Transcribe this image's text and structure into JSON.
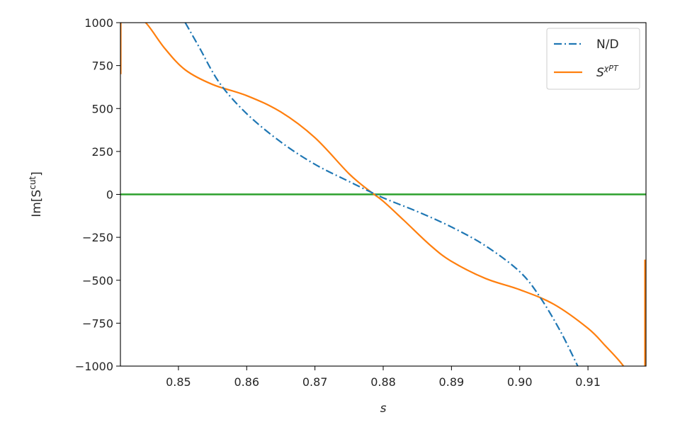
{
  "chart_data": {
    "type": "line",
    "xlabel": "s",
    "ylabel": "Im[S^cut]",
    "ylabel_base": "Im[S",
    "ylabel_sup": "cut",
    "ylabel_close": "]",
    "xlim": [
      0.8415,
      0.9185
    ],
    "ylim": [
      -1000,
      1000
    ],
    "xticks": [
      0.85,
      0.86,
      0.87,
      0.88,
      0.89,
      0.9,
      0.91
    ],
    "xtick_labels": [
      "0.85",
      "0.86",
      "0.87",
      "0.88",
      "0.89",
      "0.90",
      "0.91"
    ],
    "yticks": [
      1000,
      750,
      500,
      250,
      0,
      -250,
      -500,
      -750,
      -1000
    ],
    "ytick_labels": [
      "1000",
      "750",
      "500",
      "250",
      "0",
      "−250",
      "−500",
      "−750",
      "−1000"
    ],
    "grid": false,
    "legend_position": "top-right",
    "series": [
      {
        "name": "N/D",
        "color": "#1f77b4",
        "style": "dashdot",
        "x": [
          0.851,
          0.853,
          0.856,
          0.86,
          0.865,
          0.87,
          0.875,
          0.88,
          0.885,
          0.89,
          0.895,
          0.9,
          0.903,
          0.906,
          0.9085
        ],
        "y": [
          1000,
          860,
          650,
          470,
          305,
          175,
          75,
          -20,
          -100,
          -190,
          -300,
          -450,
          -600,
          -800,
          -1000
        ]
      },
      {
        "name": "S^χPT",
        "name_base": "S",
        "name_sup": "χPT",
        "color": "#ff7f0e",
        "style": "solid",
        "x": [
          0.8405,
          0.8421,
          0.8432,
          0.8452,
          0.848,
          0.851,
          0.855,
          0.86,
          0.865,
          0.87,
          0.875,
          0.878,
          0.88,
          0.883,
          0.887,
          0.89,
          0.895,
          0.9,
          0.905,
          0.91,
          0.9125,
          0.9152,
          0.9175
        ],
        "y": [
          1000,
          1050,
          1040,
          1000,
          850,
          725,
          640,
          575,
          480,
          330,
          120,
          20,
          -40,
          -150,
          -300,
          -390,
          -490,
          -555,
          -640,
          -780,
          -880,
          -1000,
          -1150
        ]
      },
      {
        "name": "",
        "color": "#2ca02c",
        "style": "solid",
        "x": [
          0.8415,
          0.9185
        ],
        "y": [
          0,
          0
        ]
      }
    ]
  }
}
